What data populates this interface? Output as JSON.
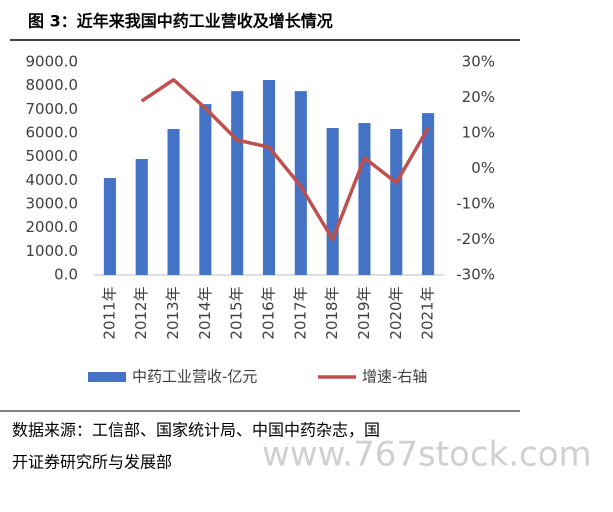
{
  "chart_data": {
    "type": "bar_line",
    "title": "图 3：近年来我国中药工业营收及增长情况",
    "categories": [
      "2011年",
      "2012年",
      "2013年",
      "2014年",
      "2015年",
      "2016年",
      "2017年",
      "2018年",
      "2019年",
      "2020年",
      "2021年"
    ],
    "series": [
      {
        "name": "中药工业营收-亿元",
        "type": "bar",
        "color": "#4472c4",
        "values": [
          4100,
          4900,
          6170,
          7220,
          7770,
          8240,
          7770,
          6210,
          6420,
          6170,
          6840
        ]
      },
      {
        "name": "增速-右轴",
        "type": "line",
        "axis": "y2",
        "color": "#c0504d",
        "values": [
          null,
          19,
          25,
          17,
          8,
          6,
          -5,
          -20,
          3,
          -4,
          11.4
        ]
      }
    ],
    "ylim": [
      0,
      9000
    ],
    "yticks": [
      {
        "value": 0,
        "label": "0.0"
      },
      {
        "value": 1000,
        "label": "1000.0"
      },
      {
        "value": 2000,
        "label": "2000.0"
      },
      {
        "value": 3000,
        "label": "3000.0"
      },
      {
        "value": 4000,
        "label": "4000.0"
      },
      {
        "value": 5000,
        "label": "5000.0"
      },
      {
        "value": 6000,
        "label": "6000.0"
      },
      {
        "value": 7000,
        "label": "7000.0"
      },
      {
        "value": 8000,
        "label": "8000.0"
      },
      {
        "value": 9000,
        "label": "9000.0"
      }
    ],
    "y2lim": [
      -30,
      30
    ],
    "y2ticks": [
      {
        "value": -30,
        "label": "-30%"
      },
      {
        "value": -20,
        "label": "-20%"
      },
      {
        "value": -10,
        "label": "-10%"
      },
      {
        "value": 0,
        "label": "0%"
      },
      {
        "value": 10,
        "label": "10%"
      },
      {
        "value": 20,
        "label": "20%"
      },
      {
        "value": 30,
        "label": "30%"
      }
    ],
    "legend": "bottom",
    "source": [
      "数据来源：工信部、国家统计局、中国中药杂志，国",
      "开证券研究所与发展部"
    ],
    "watermark": "www.767stock.com"
  }
}
